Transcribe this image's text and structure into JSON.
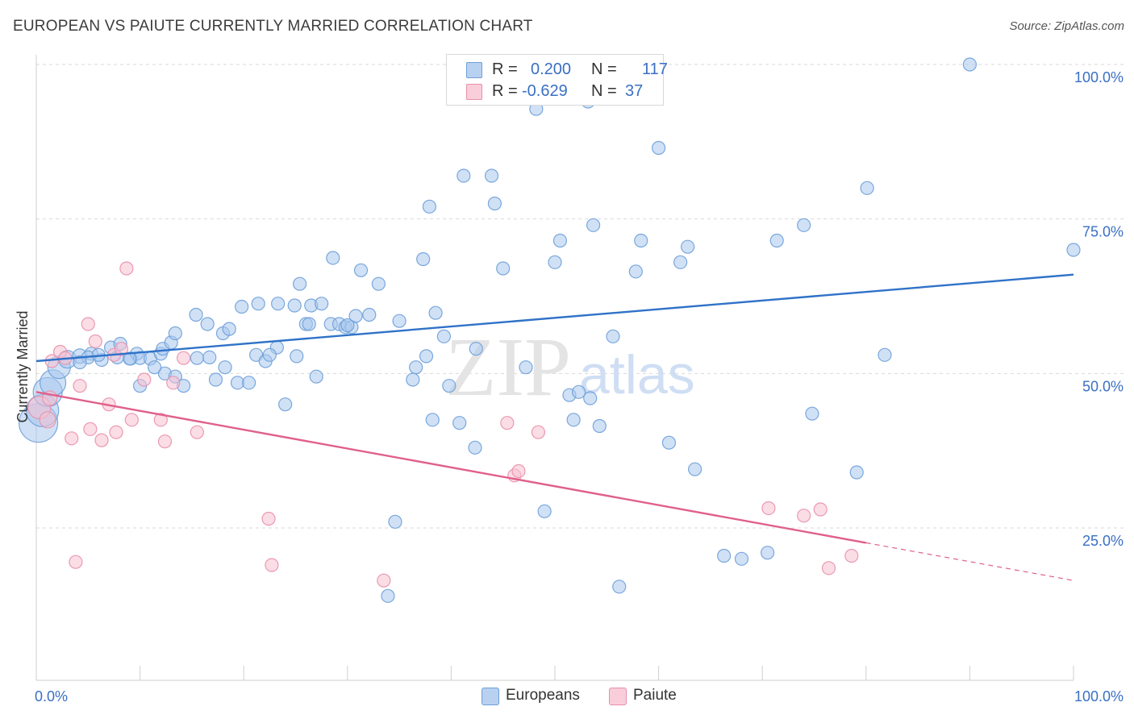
{
  "title": "EUROPEAN VS PAIUTE CURRENTLY MARRIED CORRELATION CHART",
  "source": "Source: ZipAtlas.com",
  "watermark": {
    "zip": "ZIP",
    "atlas": "atlas"
  },
  "legend_stats": [
    {
      "r_label": "R =",
      "r_value": "0.200",
      "n_label": "N =",
      "n_value": "117"
    },
    {
      "r_label": "R =",
      "r_value": "-0.629",
      "n_label": "N =",
      "n_value": "37"
    }
  ],
  "colors": {
    "europeans_fill": "#a9c8ee",
    "europeans_stroke": "#6d9fd8",
    "europeans_line": "#2f72c8",
    "paiute_fill": "#f7c1d1",
    "paiute_stroke": "#e98fab",
    "paiute_line": "#e0608a",
    "grid": "#d9d9d9",
    "axis_label": "#3a6fc4"
  },
  "chart_data": {
    "type": "scatter",
    "title": "EUROPEAN VS PAIUTE CURRENTLY MARRIED CORRELATION CHART",
    "xlabel": "",
    "ylabel": "Currently Married",
    "xlim": [
      0,
      100
    ],
    "ylim": [
      0,
      102
    ],
    "x_tick_labels": [
      "0.0%",
      "100.0%"
    ],
    "y_tick_labels": [
      "25.0%",
      "50.0%",
      "75.0%",
      "100.0%"
    ],
    "y_ticks": [
      25,
      50,
      75,
      100
    ],
    "grid": true,
    "legend": "bottom-center",
    "series": [
      {
        "name": "Europeans",
        "r": 0.2,
        "n": 117,
        "trend": {
          "x0": 0,
          "y0": 52.0,
          "x1": 100,
          "y1": 66.0,
          "dashed_from": null
        },
        "points": [
          [
            0.2,
            42,
            24
          ],
          [
            0.6,
            44,
            20
          ],
          [
            1.1,
            47,
            18
          ],
          [
            1.6,
            48.5,
            16
          ],
          [
            2.2,
            51,
            14
          ],
          [
            3.0,
            52.3,
            11
          ],
          [
            4.2,
            52.8,
            9
          ],
          [
            5.3,
            53.2,
            8
          ],
          [
            6.3,
            52.2,
            8
          ],
          [
            7.8,
            52.6,
            8
          ],
          [
            9.1,
            52.4,
            8
          ],
          [
            9.7,
            53.2,
            8
          ],
          [
            7.2,
            54.2,
            8
          ],
          [
            8.1,
            54.8,
            8
          ],
          [
            10.0,
            52.5,
            8
          ],
          [
            11.0,
            52.4,
            8
          ],
          [
            12.0,
            53.2,
            8
          ],
          [
            12.4,
            50.0,
            8
          ],
          [
            13.4,
            49.5,
            8
          ],
          [
            14.2,
            48.0,
            8
          ],
          [
            15.5,
            52.5,
            8
          ],
          [
            17.3,
            49.0,
            8
          ],
          [
            18.2,
            51.0,
            8
          ],
          [
            19.4,
            48.5,
            8
          ],
          [
            20.5,
            48.5,
            8
          ],
          [
            21.2,
            53.0,
            8
          ],
          [
            22.1,
            52.0,
            8
          ],
          [
            23.2,
            54.2,
            8
          ],
          [
            24.0,
            45.0,
            8
          ],
          [
            25.1,
            52.8,
            8
          ],
          [
            10.0,
            48.0,
            8
          ],
          [
            12.2,
            54.0,
            8
          ],
          [
            13.0,
            55.0,
            8
          ],
          [
            13.4,
            56.5,
            8
          ],
          [
            15.4,
            59.5,
            8
          ],
          [
            16.5,
            58.0,
            8
          ],
          [
            18.0,
            56.5,
            8
          ],
          [
            18.6,
            57.2,
            8
          ],
          [
            19.8,
            60.8,
            8
          ],
          [
            21.4,
            61.3,
            8
          ],
          [
            23.3,
            61.3,
            8
          ],
          [
            25.4,
            64.5,
            8
          ],
          [
            26.0,
            58.0,
            8
          ],
          [
            26.3,
            58.0,
            8
          ],
          [
            26.5,
            61.0,
            8
          ],
          [
            27.5,
            61.3,
            8
          ],
          [
            28.4,
            58.0,
            8
          ],
          [
            28.6,
            68.7,
            8
          ],
          [
            29.2,
            58.0,
            8
          ],
          [
            29.8,
            57.5,
            8
          ],
          [
            30.4,
            57.5,
            8
          ],
          [
            30.8,
            59.3,
            8
          ],
          [
            31.3,
            66.7,
            8
          ],
          [
            32.1,
            59.5,
            8
          ],
          [
            33.0,
            64.5,
            8
          ],
          [
            35.0,
            58.5,
            8
          ],
          [
            36.6,
            51.0,
            8
          ],
          [
            37.6,
            52.8,
            8
          ],
          [
            38.5,
            59.8,
            8
          ],
          [
            39.3,
            56.0,
            8
          ],
          [
            27.0,
            49.5,
            8
          ],
          [
            34.6,
            26.0,
            8
          ],
          [
            33.9,
            14.0,
            8
          ],
          [
            38.2,
            42.5,
            8
          ],
          [
            40.8,
            42.0,
            8
          ],
          [
            42.4,
            54.0,
            8
          ],
          [
            36.3,
            49.0,
            8
          ],
          [
            39.8,
            48.0,
            8
          ],
          [
            37.3,
            68.5,
            8
          ],
          [
            37.9,
            77.0,
            8
          ],
          [
            41.2,
            82.0,
            8
          ],
          [
            43.9,
            82.0,
            8
          ],
          [
            44.2,
            77.5,
            8
          ],
          [
            45.0,
            67.0,
            8
          ],
          [
            47.2,
            51.0,
            8
          ],
          [
            48.2,
            92.8,
            8
          ],
          [
            49.8,
            100.2,
            8
          ],
          [
            51.4,
            46.5,
            8
          ],
          [
            50.0,
            68.0,
            8
          ],
          [
            50.5,
            71.5,
            8
          ],
          [
            51.8,
            42.5,
            8
          ],
          [
            52.3,
            47.0,
            8
          ],
          [
            53.4,
            46.0,
            8
          ],
          [
            54.3,
            41.5,
            8
          ],
          [
            53.2,
            94.0,
            8
          ],
          [
            53.7,
            74.0,
            8
          ],
          [
            55.6,
            56.0,
            8
          ],
          [
            57.8,
            66.5,
            8
          ],
          [
            58.3,
            71.5,
            8
          ],
          [
            49.0,
            27.7,
            8
          ],
          [
            56.2,
            15.5,
            8
          ],
          [
            60.0,
            86.5,
            8
          ],
          [
            61.0,
            38.8,
            8
          ],
          [
            62.1,
            68.0,
            8
          ],
          [
            62.8,
            70.5,
            8
          ],
          [
            63.5,
            34.5,
            8
          ],
          [
            66.3,
            20.5,
            8
          ],
          [
            68.0,
            20.0,
            8
          ],
          [
            71.4,
            71.5,
            8
          ],
          [
            74.0,
            74.0,
            8
          ],
          [
            74.8,
            43.5,
            8
          ],
          [
            79.1,
            34.0,
            8
          ],
          [
            80.1,
            80.0,
            8
          ],
          [
            81.8,
            53.0,
            8
          ],
          [
            90.0,
            100.0,
            8
          ],
          [
            100.0,
            70.0,
            8
          ],
          [
            30.0,
            57.8,
            8
          ],
          [
            9.0,
            52.4,
            8
          ],
          [
            5.0,
            52.6,
            8
          ],
          [
            6.0,
            53.0,
            8
          ],
          [
            4.2,
            51.8,
            8
          ],
          [
            11.4,
            51.0,
            8
          ],
          [
            16.7,
            52.6,
            8
          ],
          [
            24.9,
            61.0,
            8
          ],
          [
            22.5,
            53.0,
            8
          ],
          [
            42.3,
            38.0,
            8
          ],
          [
            70.5,
            21.0,
            8
          ]
        ]
      },
      {
        "name": "Paiute",
        "r": -0.629,
        "n": 37,
        "trend": {
          "x0": 0,
          "y0": 47.0,
          "x1": 100,
          "y1": 16.5,
          "dashed_from": 80
        },
        "points": [
          [
            0.3,
            44.5,
            14
          ],
          [
            1.1,
            42.5,
            10
          ],
          [
            1.3,
            46.0,
            9
          ],
          [
            1.5,
            52.0,
            8
          ],
          [
            2.3,
            53.5,
            8
          ],
          [
            2.8,
            52.5,
            8
          ],
          [
            3.4,
            39.5,
            8
          ],
          [
            3.8,
            19.5,
            8
          ],
          [
            4.2,
            48.0,
            8
          ],
          [
            5.0,
            58.0,
            8
          ],
          [
            5.2,
            41.0,
            8
          ],
          [
            5.7,
            55.2,
            8
          ],
          [
            6.3,
            39.2,
            8
          ],
          [
            7.0,
            45.0,
            8
          ],
          [
            7.5,
            53.0,
            8
          ],
          [
            7.7,
            40.5,
            8
          ],
          [
            8.2,
            54.0,
            8
          ],
          [
            8.7,
            67.0,
            8
          ],
          [
            9.2,
            42.5,
            8
          ],
          [
            10.4,
            49.0,
            8
          ],
          [
            12.0,
            42.5,
            8
          ],
          [
            12.4,
            39.0,
            8
          ],
          [
            13.2,
            48.5,
            8
          ],
          [
            14.2,
            52.5,
            8
          ],
          [
            15.5,
            40.5,
            8
          ],
          [
            22.4,
            26.5,
            8
          ],
          [
            22.7,
            19.0,
            8
          ],
          [
            33.5,
            16.5,
            8
          ],
          [
            45.4,
            42.0,
            8
          ],
          [
            46.1,
            33.5,
            8
          ],
          [
            46.5,
            34.2,
            8
          ],
          [
            48.4,
            40.5,
            8
          ],
          [
            70.6,
            28.2,
            8
          ],
          [
            74.0,
            27.0,
            8
          ],
          [
            75.6,
            28.0,
            8
          ],
          [
            76.4,
            18.5,
            8
          ],
          [
            78.6,
            20.5,
            8
          ]
        ]
      }
    ]
  },
  "bottom_legend": [
    "Europeans",
    "Paiute"
  ]
}
